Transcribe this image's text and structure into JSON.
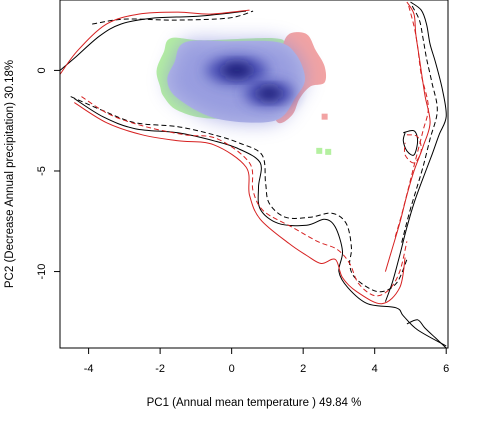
{
  "chart_data": {
    "type": "scatter",
    "title": "",
    "xlabel": "PC1 (Annual mean temperature ) 49.84 %",
    "ylabel": "PC2 (Decrease Annual precipitation) 30.18%",
    "xlim": [
      -4.8,
      6.05
    ],
    "ylim": [
      -13.8,
      3.5
    ],
    "xticks": [
      -4,
      -2,
      0,
      2,
      4,
      6
    ],
    "yticks": [
      0,
      -5,
      -10
    ],
    "xtick_labels": [
      "-4",
      "-2",
      "0",
      "2",
      "4",
      "6"
    ],
    "ytick_labels": [
      "0",
      "-5",
      "-10"
    ],
    "grid": false,
    "legend": false,
    "colors": {
      "green_zone": "#b4f0a0",
      "red_zone": "#f2a3a3",
      "overlap_light": "#b8bce8",
      "overlap_mid": "#8a90dc",
      "overlap_dark": "#3a3fae",
      "overlap_core": "#15186a",
      "env_black": "#000000",
      "env_red": "#d62020"
    },
    "zones": [
      {
        "name": "green",
        "points": [
          [
            -1.7,
            1.6
          ],
          [
            -0.8,
            1.5
          ],
          [
            1.2,
            1.6
          ],
          [
            1.5,
            1.2
          ],
          [
            1.7,
            0.2
          ],
          [
            1.6,
            -2.2
          ],
          [
            -0.5,
            -2.4
          ],
          [
            -1.5,
            -2.0
          ],
          [
            -1.9,
            -1.3
          ],
          [
            -2.0,
            -0.8
          ],
          [
            -2.1,
            0.0
          ],
          [
            -1.9,
            0.9
          ]
        ]
      },
      {
        "name": "red",
        "points": [
          [
            1.6,
            1.8
          ],
          [
            2.1,
            1.8
          ],
          [
            2.35,
            1.0
          ],
          [
            2.6,
            0.2
          ],
          [
            2.6,
            -0.6
          ],
          [
            2.2,
            -0.8
          ],
          [
            1.9,
            -1.4
          ],
          [
            1.7,
            -2.2
          ],
          [
            1.3,
            -2.6
          ],
          [
            1.1,
            -1.5
          ],
          [
            1.4,
            0.0
          ],
          [
            1.4,
            1.0
          ]
        ]
      },
      {
        "name": "overlap",
        "points": [
          [
            -1.6,
            0.4
          ],
          [
            -1.3,
            1.4
          ],
          [
            0.0,
            1.45
          ],
          [
            1.3,
            1.4
          ],
          [
            1.8,
            0.8
          ],
          [
            2.05,
            -0.4
          ],
          [
            1.8,
            -1.3
          ],
          [
            1.2,
            -2.5
          ],
          [
            -0.4,
            -2.4
          ],
          [
            -1.5,
            -1.4
          ],
          [
            -1.8,
            -0.5
          ]
        ]
      }
    ],
    "density_cores": [
      {
        "x": 0.15,
        "y": 0.0,
        "rx": 0.55,
        "ry": 0.45
      },
      {
        "x": 1.05,
        "y": -1.15,
        "rx": 0.45,
        "ry": 0.4
      }
    ],
    "stray_points": [
      {
        "x": 2.45,
        "y": -4.0,
        "zone": "green"
      },
      {
        "x": 2.7,
        "y": -4.05,
        "zone": "green"
      },
      {
        "x": 2.6,
        "y": -2.3,
        "zone": "red"
      }
    ],
    "envelopes": [
      {
        "name": "black-solid",
        "color": "#000000",
        "dash": false,
        "points": [
          [
            -4.8,
            0.0
          ],
          [
            -4.4,
            0.6
          ],
          [
            -3.7,
            1.7
          ],
          [
            -3.1,
            2.3
          ],
          [
            -2.2,
            2.6
          ],
          [
            -0.9,
            2.7
          ],
          [
            0.4,
            2.95
          ]
        ]
      },
      {
        "name": "black-solid-2",
        "color": "#000000",
        "dash": false,
        "points": [
          [
            -4.4,
            -1.4
          ],
          [
            -3.6,
            -2.3
          ],
          [
            -2.7,
            -2.9
          ],
          [
            -1.5,
            -3.1
          ],
          [
            -0.5,
            -3.5
          ],
          [
            0.2,
            -3.9
          ],
          [
            0.8,
            -4.6
          ],
          [
            0.75,
            -5.8
          ],
          [
            0.8,
            -6.9
          ],
          [
            1.3,
            -7.6
          ],
          [
            2.1,
            -7.7
          ],
          [
            2.6,
            -7.4
          ],
          [
            2.9,
            -7.8
          ],
          [
            3.1,
            -9.0
          ],
          [
            3.0,
            -10.0
          ],
          [
            3.25,
            -10.8
          ],
          [
            3.8,
            -11.6
          ],
          [
            4.6,
            -11.8
          ],
          [
            4.8,
            -12.2
          ],
          [
            5.2,
            -12.9
          ],
          [
            6.0,
            -13.7
          ]
        ]
      },
      {
        "name": "black-dashed",
        "color": "#000000",
        "dash": true,
        "points": [
          [
            -3.9,
            2.3
          ],
          [
            -3.0,
            2.55
          ],
          [
            -1.6,
            2.5
          ],
          [
            -0.1,
            2.6
          ],
          [
            0.6,
            2.95
          ]
        ]
      },
      {
        "name": "black-dashed-2",
        "color": "#000000",
        "dash": true,
        "points": [
          [
            -4.5,
            -1.3
          ],
          [
            -3.6,
            -2.0
          ],
          [
            -2.7,
            -2.6
          ],
          [
            -1.5,
            -2.8
          ],
          [
            -0.5,
            -3.2
          ],
          [
            0.2,
            -3.6
          ],
          [
            0.85,
            -4.2
          ],
          [
            0.95,
            -5.6
          ],
          [
            1.05,
            -6.6
          ],
          [
            1.5,
            -7.3
          ],
          [
            2.2,
            -7.3
          ],
          [
            2.8,
            -7.1
          ],
          [
            3.2,
            -7.6
          ],
          [
            3.35,
            -8.8
          ],
          [
            3.3,
            -9.7
          ],
          [
            3.5,
            -10.4
          ],
          [
            4.1,
            -11.0
          ],
          [
            4.6,
            -10.6
          ],
          [
            4.9,
            -9.4
          ]
        ]
      },
      {
        "name": "red-solid",
        "color": "#d62020",
        "dash": false,
        "points": [
          [
            -4.8,
            -0.2
          ],
          [
            -4.3,
            1.0
          ],
          [
            -3.5,
            2.3
          ],
          [
            -2.6,
            2.8
          ],
          [
            -1.5,
            2.9
          ],
          [
            -0.6,
            2.8
          ],
          [
            0.5,
            3.0
          ]
        ]
      },
      {
        "name": "red-solid-2",
        "color": "#d62020",
        "dash": false,
        "points": [
          [
            -4.4,
            -1.6
          ],
          [
            -3.5,
            -2.6
          ],
          [
            -2.5,
            -3.2
          ],
          [
            -1.5,
            -3.5
          ],
          [
            -0.5,
            -3.7
          ],
          [
            0.4,
            -4.8
          ],
          [
            0.5,
            -6.2
          ],
          [
            0.8,
            -7.4
          ],
          [
            1.6,
            -8.6
          ],
          [
            2.1,
            -9.2
          ],
          [
            2.5,
            -9.6
          ],
          [
            2.9,
            -9.4
          ],
          [
            3.1,
            -10.3
          ],
          [
            3.5,
            -11.0
          ],
          [
            4.2,
            -11.6
          ],
          [
            4.7,
            -10.8
          ],
          [
            4.85,
            -9.3
          ]
        ]
      },
      {
        "name": "red-dashed",
        "color": "#d62020",
        "dash": true,
        "points": [
          [
            -4.2,
            -1.3
          ],
          [
            -3.4,
            -2.2
          ],
          [
            -2.4,
            -2.8
          ],
          [
            -1.3,
            -3.2
          ],
          [
            -0.4,
            -3.4
          ],
          [
            0.5,
            -4.6
          ],
          [
            0.6,
            -6.0
          ],
          [
            0.9,
            -7.0
          ],
          [
            1.7,
            -7.8
          ],
          [
            2.4,
            -8.5
          ],
          [
            2.95,
            -8.9
          ],
          [
            3.3,
            -9.6
          ],
          [
            3.55,
            -10.6
          ],
          [
            4.0,
            -11.2
          ],
          [
            4.4,
            -10.9
          ],
          [
            4.7,
            -10.0
          ],
          [
            4.9,
            -8.5
          ]
        ]
      },
      {
        "name": "right-black-solid",
        "color": "#000000",
        "dash": false,
        "points": [
          [
            5.0,
            3.4
          ],
          [
            5.3,
            3.0
          ],
          [
            5.45,
            2.3
          ],
          [
            5.55,
            1.3
          ],
          [
            5.7,
            0.4
          ],
          [
            5.9,
            -1.0
          ],
          [
            6.0,
            -2.3
          ],
          [
            5.8,
            -3.2
          ],
          [
            5.6,
            -4.2
          ],
          [
            5.3,
            -5.6
          ],
          [
            5.1,
            -6.6
          ],
          [
            4.9,
            -7.8
          ],
          [
            4.7,
            -9.2
          ],
          [
            4.5,
            -10.5
          ],
          [
            4.3,
            -11.5
          ]
        ]
      },
      {
        "name": "right-black-dashed",
        "color": "#000000",
        "dash": true,
        "points": [
          [
            5.05,
            3.2
          ],
          [
            5.25,
            2.5
          ],
          [
            5.35,
            1.6
          ],
          [
            5.45,
            0.6
          ],
          [
            5.6,
            -0.6
          ],
          [
            5.75,
            -2.0
          ],
          [
            5.55,
            -3.4
          ],
          [
            5.35,
            -4.8
          ],
          [
            5.15,
            -6.0
          ],
          [
            4.95,
            -7.2
          ],
          [
            4.75,
            -8.6
          ]
        ]
      },
      {
        "name": "right-red-solid",
        "color": "#d62020",
        "dash": false,
        "points": [
          [
            4.9,
            3.4
          ],
          [
            5.1,
            2.8
          ],
          [
            5.15,
            1.8
          ],
          [
            5.25,
            0.6
          ],
          [
            5.4,
            -1.2
          ],
          [
            5.55,
            -2.6
          ],
          [
            5.35,
            -3.8
          ],
          [
            5.1,
            -5.0
          ],
          [
            4.9,
            -6.2
          ],
          [
            4.7,
            -7.6
          ],
          [
            4.5,
            -8.8
          ],
          [
            4.3,
            -10.0
          ]
        ]
      },
      {
        "name": "right-red-dashed",
        "color": "#d62020",
        "dash": true,
        "points": [
          [
            4.95,
            3.2
          ],
          [
            5.1,
            2.2
          ],
          [
            5.2,
            1.2
          ],
          [
            5.3,
            -0.2
          ],
          [
            5.5,
            -1.8
          ],
          [
            5.35,
            -3.0
          ],
          [
            5.15,
            -4.4
          ],
          [
            4.95,
            -5.8
          ],
          [
            4.75,
            -7.2
          ],
          [
            4.55,
            -8.4
          ]
        ]
      },
      {
        "name": "inner-loops",
        "color": "#000000",
        "dash": false,
        "points": [
          [
            4.8,
            -3.1
          ],
          [
            5.1,
            -3.0
          ],
          [
            5.2,
            -3.5
          ],
          [
            5.1,
            -4.2
          ],
          [
            4.9,
            -4.0
          ],
          [
            4.8,
            -3.5
          ],
          [
            4.85,
            -3.1
          ]
        ]
      },
      {
        "name": "inner-loops-red",
        "color": "#d62020",
        "dash": true,
        "points": [
          [
            4.9,
            -3.2
          ],
          [
            5.2,
            -3.3
          ],
          [
            5.3,
            -4.0
          ],
          [
            5.1,
            -4.6
          ],
          [
            4.85,
            -4.2
          ],
          [
            4.85,
            -3.6
          ]
        ]
      },
      {
        "name": "bottom-loop",
        "color": "#000000",
        "dash": false,
        "points": [
          [
            4.9,
            -12.6
          ],
          [
            5.2,
            -12.4
          ],
          [
            5.4,
            -12.8
          ],
          [
            5.7,
            -13.3
          ],
          [
            6.0,
            -13.8
          ]
        ]
      }
    ]
  }
}
